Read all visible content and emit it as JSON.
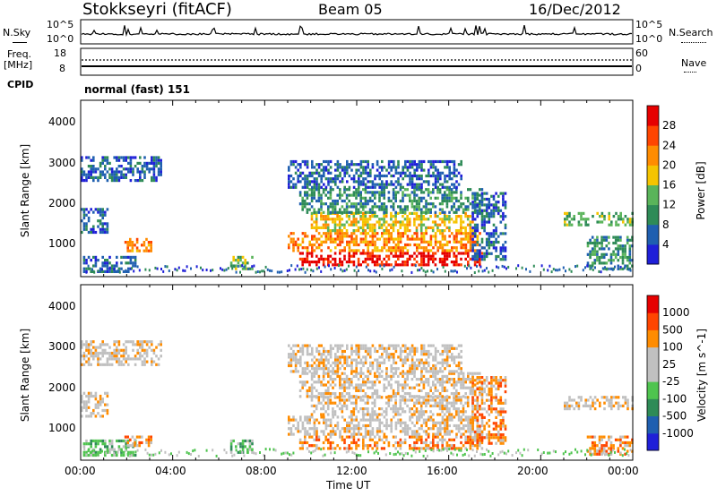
{
  "header": {
    "station": "Stokkseyri (fitACF)",
    "beam": "Beam 05",
    "date": "16/Dec/2012"
  },
  "nsky_panel": {
    "left_label": "N.Sky",
    "right_label": "N.Search",
    "left_ticks": [
      "10^5",
      "10^0"
    ],
    "right_ticks": [
      "10^5",
      "10^0"
    ]
  },
  "freq_panel": {
    "left_label_1": "Freq.",
    "left_label_2": "[MHz]",
    "right_label": "Nave",
    "left_ticks": [
      "18",
      "8"
    ],
    "right_ticks": [
      "60",
      "0"
    ]
  },
  "cpid_panel": {
    "label": "CPID",
    "mode": "normal (fast) 151"
  },
  "colors": {
    "power": [
      "#1f1fd8",
      "#1f5fb0",
      "#2e8b57",
      "#5ab45a",
      "#f5c400",
      "#ff8c00",
      "#ff4500",
      "#e60000"
    ],
    "velocity": [
      "#e60000",
      "#ff4500",
      "#ff8c00",
      "#c0c0c0",
      "#c0c0c0",
      "#4fc44f",
      "#2e8b57",
      "#1f5fb0",
      "#1f1fd8"
    ]
  },
  "chart_data": [
    {
      "type": "heatmap",
      "quantity": "Power",
      "ylabel": "Slant Range [km]",
      "yticks": [
        "1000",
        "2000",
        "3000",
        "4000"
      ],
      "colorbar_label": "Power [dB]",
      "colorbar_ticks": [
        "4",
        "8",
        "12",
        "16",
        "20",
        "24",
        "28"
      ],
      "x_range_hours": [
        0,
        24
      ],
      "y_range_km": [
        180,
        4600
      ],
      "echo_regions": [
        {
          "t0": 0.1,
          "t1": 2.4,
          "r0": 300,
          "r1": 700,
          "level": 1
        },
        {
          "t0": 1.9,
          "t1": 3.1,
          "r0": 850,
          "r1": 1150,
          "level": 5
        },
        {
          "t0": 0.0,
          "t1": 1.2,
          "r0": 1300,
          "r1": 1900,
          "level": 1
        },
        {
          "t0": 0.0,
          "t1": 3.5,
          "r0": 2600,
          "r1": 3200,
          "level": 1
        },
        {
          "t0": 9.5,
          "t1": 17.5,
          "r0": 450,
          "r1": 800,
          "level": 7
        },
        {
          "t0": 9.0,
          "t1": 17.5,
          "r0": 800,
          "r1": 1300,
          "level": 5
        },
        {
          "t0": 10.0,
          "t1": 17.0,
          "r0": 1300,
          "r1": 1800,
          "level": 4
        },
        {
          "t0": 9.5,
          "t1": 17.5,
          "r0": 1800,
          "r1": 2400,
          "level": 2
        },
        {
          "t0": 9.0,
          "t1": 16.5,
          "r0": 2400,
          "r1": 3100,
          "level": 1
        },
        {
          "t0": 17.0,
          "t1": 18.5,
          "r0": 600,
          "r1": 2300,
          "level": 1
        },
        {
          "t0": 22.0,
          "t1": 24.0,
          "r0": 350,
          "r1": 1200,
          "level": 2
        },
        {
          "t0": 21.0,
          "t1": 24.0,
          "r0": 1500,
          "r1": 1800,
          "level": 3
        },
        {
          "t0": 6.5,
          "t1": 7.5,
          "r0": 400,
          "r1": 700,
          "level": 3
        }
      ]
    },
    {
      "type": "heatmap",
      "quantity": "Velocity",
      "ylabel": "Slant Range [km]",
      "yticks": [
        "1000",
        "2000",
        "3000",
        "4000"
      ],
      "colorbar_label": "Velocity [m s^-1]",
      "colorbar_ticks": [
        "1000",
        "500",
        "100",
        "25",
        "-25",
        "-100",
        "-500",
        "-1000"
      ],
      "xlabel": "Time UT",
      "xticks": [
        "00:00",
        "04:00",
        "08:00",
        "12:00",
        "16:00",
        "20:00",
        "00:00"
      ],
      "x_range_hours": [
        0,
        24
      ],
      "y_range_km": [
        180,
        4600
      ],
      "echo_regions": [
        {
          "t0": 0.1,
          "t1": 2.4,
          "r0": 300,
          "r1": 700,
          "level": 5
        },
        {
          "t0": 1.9,
          "t1": 3.1,
          "r0": 550,
          "r1": 800,
          "level": 2
        },
        {
          "t0": 0.0,
          "t1": 1.2,
          "r0": 1300,
          "r1": 1900,
          "level": 3
        },
        {
          "t0": 0.0,
          "t1": 3.5,
          "r0": 2600,
          "r1": 3200,
          "level": 3
        },
        {
          "t0": 9.5,
          "t1": 17.5,
          "r0": 450,
          "r1": 800,
          "level": 2
        },
        {
          "t0": 9.0,
          "t1": 17.5,
          "r0": 800,
          "r1": 1300,
          "level": 3
        },
        {
          "t0": 10.0,
          "t1": 17.0,
          "r0": 1300,
          "r1": 1800,
          "level": 3
        },
        {
          "t0": 9.5,
          "t1": 17.5,
          "r0": 1800,
          "r1": 2400,
          "level": 3
        },
        {
          "t0": 9.0,
          "t1": 16.5,
          "r0": 2400,
          "r1": 3100,
          "level": 3
        },
        {
          "t0": 17.0,
          "t1": 18.5,
          "r0": 600,
          "r1": 2300,
          "level": 2
        },
        {
          "t0": 22.0,
          "t1": 24.0,
          "r0": 350,
          "r1": 800,
          "level": 2
        },
        {
          "t0": 21.0,
          "t1": 24.0,
          "r0": 1500,
          "r1": 1800,
          "level": 3
        },
        {
          "t0": 6.5,
          "t1": 7.5,
          "r0": 400,
          "r1": 700,
          "level": 5
        }
      ]
    }
  ]
}
